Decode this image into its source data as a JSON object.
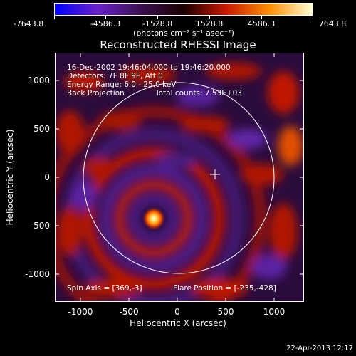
{
  "colorbar": {
    "tick_labels": [
      "-7643.8",
      "-4586.3",
      "-1528.8",
      "1528.8",
      "4586.3",
      "7643.8"
    ],
    "units": "(photons cm⁻² s⁻¹ asec⁻²)",
    "colors": [
      "#0000ff",
      "#6a22c8",
      "#3a1050",
      "#1a0000",
      "#cc1800",
      "#ff9000",
      "#ffffd8"
    ]
  },
  "title": "Reconstructed RHESSI Image",
  "info": {
    "time_range": "16-Dec-2002 19:46:04.000 to 19:46:20.000",
    "detectors": "Detectors: 7F 8F 9F, Att 0",
    "energy_range": "Energy Range: 6.0 - 25.0 keV",
    "method": "Back Projection",
    "total_counts": "Total counts: 7.53E+03",
    "spin_axis": "Spin Axis = [369,-3]",
    "flare_position": "Flare Position = [-235,-428]"
  },
  "axes": {
    "xlabel": "Heliocentric X (arcsec)",
    "ylabel": "Heliocentric Y (arcsec)",
    "xticks": [
      "-1000",
      "-500",
      "0",
      "500",
      "1000"
    ],
    "yticks": [
      "1000",
      "500",
      "0",
      "-500",
      "-1000"
    ]
  },
  "date_stamp": "22-Apr-2013 12:17"
}
